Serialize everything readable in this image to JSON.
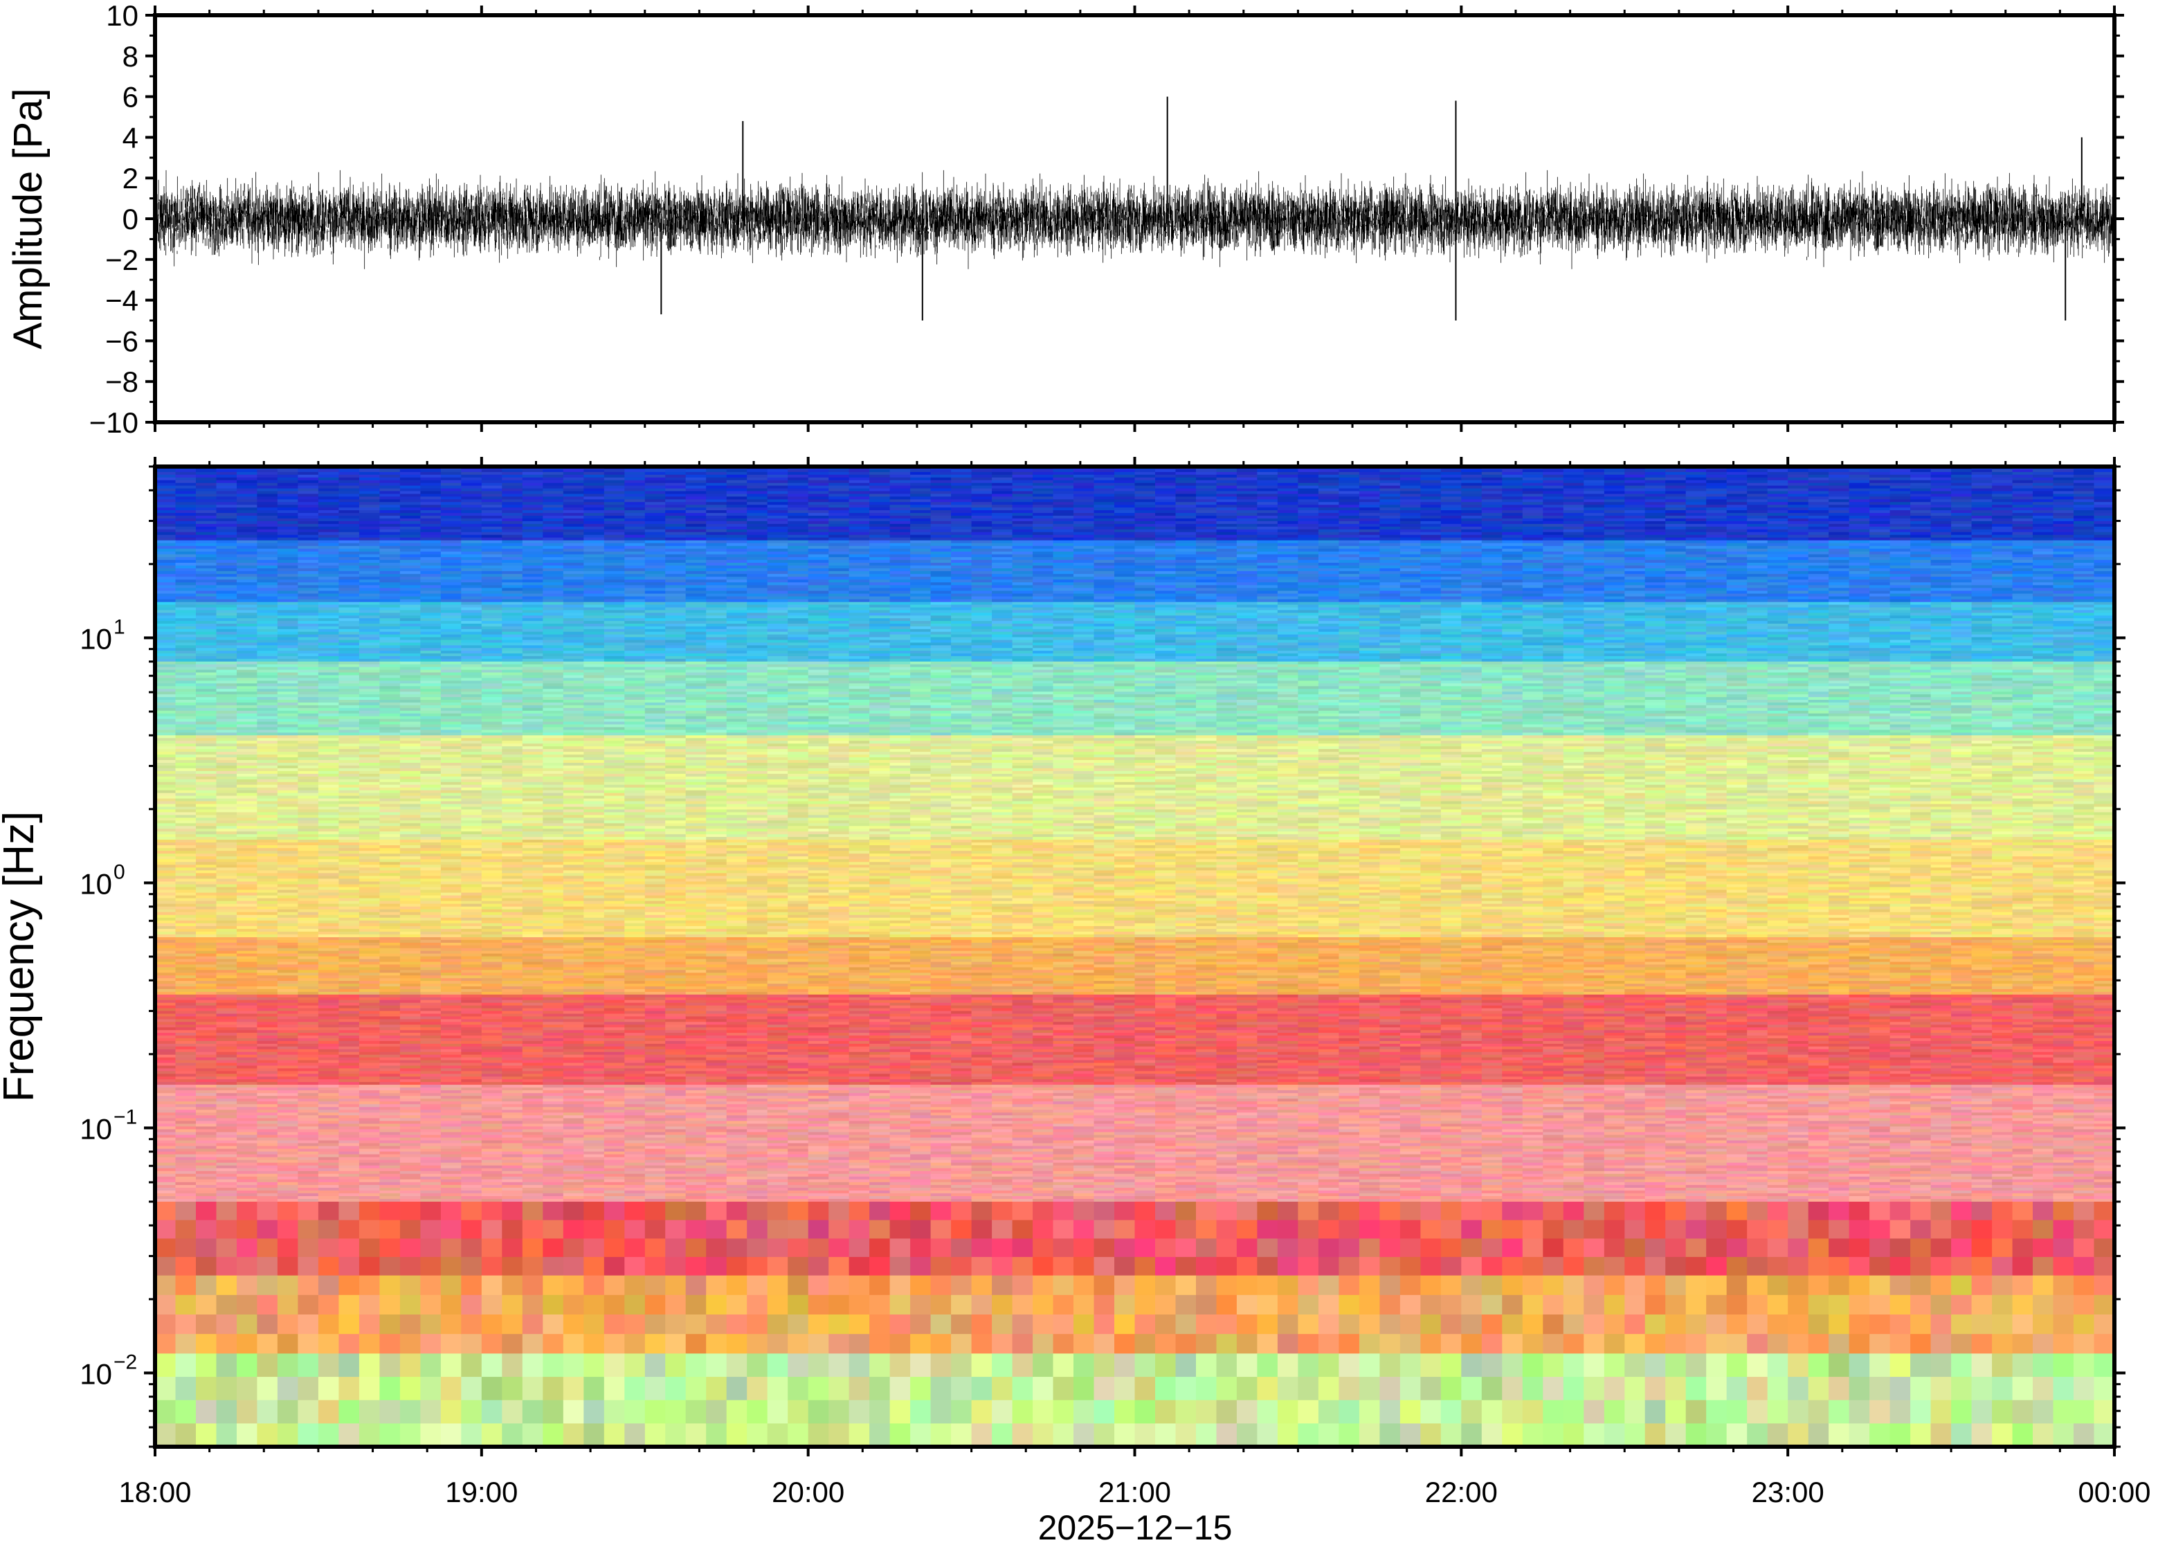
{
  "chart_data": [
    {
      "type": "line",
      "title": "",
      "xlabel": "",
      "ylabel": "Amplitude [Pa]",
      "ylim": [
        -10,
        10
      ],
      "yticks": [
        -10,
        -8,
        -6,
        -4,
        -2,
        0,
        2,
        4,
        6,
        8,
        10
      ],
      "ytick_labels": [
        "−10",
        "−8",
        "−6",
        "−4",
        "−2",
        "0",
        "2",
        "4",
        "6",
        "8",
        "10"
      ],
      "x_range": [
        "2025-12-15T18:00",
        "2025-12-16T00:00"
      ],
      "typical_envelope_pa": [
        -2.5,
        2.5
      ],
      "peaks": [
        {
          "time": "2025-12-15T21:06",
          "value": 6.0
        },
        {
          "time": "2025-12-15T21:59",
          "value": 5.8
        },
        {
          "time": "2025-12-15T19:48",
          "value": 4.8
        },
        {
          "time": "2025-12-15T20:21",
          "value": -5.0
        },
        {
          "time": "2025-12-15T21:59",
          "value": -5.0
        },
        {
          "time": "2025-12-15T19:33",
          "value": -4.7
        },
        {
          "time": "2025-12-15T23:51",
          "value": -5.0
        },
        {
          "time": "2025-12-15T23:54",
          "value": 4.0
        }
      ],
      "grid": false,
      "color": "#000000"
    },
    {
      "type": "heatmap",
      "title": "",
      "xlabel": "2025−12−15",
      "ylabel": "Frequency [Hz]",
      "yscale": "log",
      "ylim": [
        0.005,
        50
      ],
      "yticks": [
        0.01,
        0.1,
        1,
        10
      ],
      "ytick_labels": [
        {
          "base": "10",
          "exp": "−2"
        },
        {
          "base": "10",
          "exp": "−1"
        },
        {
          "base": "10",
          "exp": "0"
        },
        {
          "base": "10",
          "exp": "1"
        }
      ],
      "x_ticks": [
        "18:00",
        "19:00",
        "20:00",
        "21:00",
        "22:00",
        "23:00",
        "00:00"
      ],
      "colormap": [
        "#0a1aa0",
        "#1e50e0",
        "#2aa0f0",
        "#60d8e8",
        "#a6ecb8",
        "#f2f08a",
        "#fcc05a",
        "#f68a48",
        "#f06060",
        "#f8a0a0"
      ],
      "bands": [
        {
          "fmin": 25,
          "fmax": 50,
          "color": "#1a3acc"
        },
        {
          "fmin": 14,
          "fmax": 25,
          "color": "#2a80ee"
        },
        {
          "fmin": 8,
          "fmax": 14,
          "color": "#40bce8"
        },
        {
          "fmin": 4,
          "fmax": 8,
          "color": "#8ee6c4"
        },
        {
          "fmin": 1.5,
          "fmax": 4,
          "color": "#e0ee96"
        },
        {
          "fmin": 0.6,
          "fmax": 1.5,
          "color": "#f8dc78"
        },
        {
          "fmin": 0.35,
          "fmax": 0.6,
          "color": "#fab05a"
        },
        {
          "fmin": 0.15,
          "fmax": 0.35,
          "color": "#f26262"
        },
        {
          "fmin": 0.05,
          "fmax": 0.15,
          "color": "#f89a9a"
        },
        {
          "fmin": 0.025,
          "fmax": 0.05,
          "color": "#f05e5e"
        },
        {
          "fmin": 0.012,
          "fmax": 0.025,
          "color": "#f8a860"
        },
        {
          "fmin": 0.005,
          "fmax": 0.012,
          "color": "#c8f098"
        }
      ],
      "grid": false
    }
  ]
}
